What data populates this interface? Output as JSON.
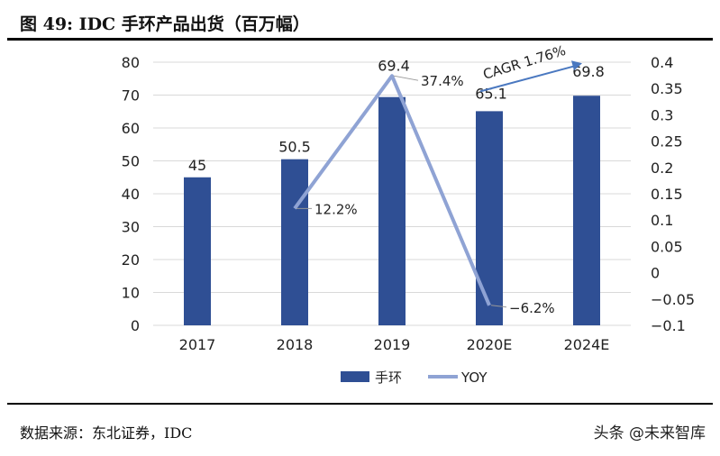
{
  "title": "图 49: IDC 手环产品出货（百万幅）",
  "source": "数据来源：东北证券，IDC",
  "watermark": "头条 @未来智库",
  "colors": {
    "bar": "#2f4f94",
    "line": "#8fa3d4",
    "arrow": "#4a78c0",
    "grid": "#d9d9d9"
  },
  "chart_data": {
    "type": "bar+line",
    "categories": [
      "2017",
      "2018",
      "2019",
      "2020E",
      "2024E"
    ],
    "series": [
      {
        "name": "手环",
        "type": "bar",
        "axis": "left",
        "values": [
          45,
          50.5,
          69.4,
          65.1,
          69.8
        ],
        "labels": [
          "45",
          "50.5",
          "69.4",
          "65.1",
          "69.8"
        ]
      },
      {
        "name": "YOY",
        "type": "line",
        "axis": "right",
        "values": [
          null,
          0.122,
          0.374,
          -0.062,
          null
        ],
        "labels": [
          "",
          "12.2%",
          "37.4%",
          "-6.2%",
          ""
        ]
      }
    ],
    "left_axis": {
      "range": [
        0,
        80
      ],
      "ticks": [
        "0",
        "10",
        "20",
        "30",
        "40",
        "50",
        "60",
        "70",
        "80"
      ]
    },
    "right_axis": {
      "range": [
        -0.1,
        0.4
      ],
      "ticks": [
        "-0.1",
        "-0.05",
        "0",
        "0.05",
        "0.1",
        "0.15",
        "0.2",
        "0.25",
        "0.3",
        "0.35",
        "0.4"
      ]
    },
    "annotation": "CAGR 1.76%",
    "grid": true,
    "legend": "bottom"
  }
}
